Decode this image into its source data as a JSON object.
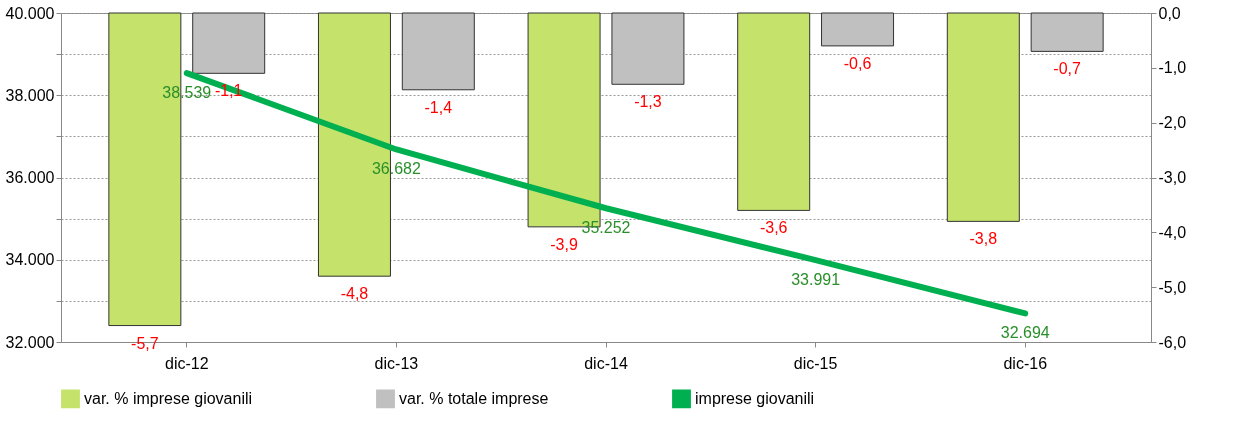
{
  "chart_data": {
    "type": "bar",
    "categories": [
      "dic-12",
      "dic-13",
      "dic-14",
      "dic-15",
      "dic-16"
    ],
    "series": [
      {
        "name": "var. % imprese giovanili",
        "axis": "y2",
        "color": "#c5e36b",
        "values": [
          -5.7,
          -4.8,
          -3.9,
          -3.6,
          -3.8
        ],
        "value_labels": [
          "-5,7",
          "-4,8",
          "-3,9",
          "-3,6",
          "-3,8"
        ]
      },
      {
        "name": "var. % totale imprese",
        "axis": "y2",
        "color": "#c0c0c0",
        "values": [
          -1.1,
          -1.4,
          -1.3,
          -0.6,
          -0.7
        ],
        "value_labels": [
          "-1,1",
          "-1,4",
          "-1,3",
          "-0,6",
          "-0,7"
        ]
      },
      {
        "name": "imprese giovanili",
        "type": "line",
        "color": "#00b050",
        "values": [
          38539,
          36682,
          35252,
          33991,
          32694
        ],
        "value_labels": [
          "38.539",
          "36.682",
          "35.252",
          "33.991",
          "32.694"
        ]
      }
    ],
    "ylim": [
      32000,
      40000
    ],
    "yticks": [
      {
        "value": 32000,
        "label": "32.000"
      },
      {
        "value": 33000,
        "label": null
      },
      {
        "value": 34000,
        "label": "34.000"
      },
      {
        "value": 35000,
        "label": null
      },
      {
        "value": 36000,
        "label": "36.000"
      },
      {
        "value": 37000,
        "label": null
      },
      {
        "value": 38000,
        "label": "38.000"
      },
      {
        "value": 39000,
        "label": null
      },
      {
        "value": 40000,
        "label": "40.000"
      }
    ],
    "y2lim": [
      -6,
      0
    ],
    "y2ticks": [
      {
        "value": -6,
        "label": "-6,0"
      },
      {
        "value": -5,
        "label": "-5,0"
      },
      {
        "value": -4,
        "label": "-4,0"
      },
      {
        "value": -3,
        "label": "-3,0"
      },
      {
        "value": -2,
        "label": "-2,0"
      },
      {
        "value": -1,
        "label": "-1,0"
      },
      {
        "value": 0,
        "label": "0,0"
      }
    ],
    "grid": "y",
    "legend": "bottom",
    "marker": "none",
    "line_style": "solid"
  }
}
